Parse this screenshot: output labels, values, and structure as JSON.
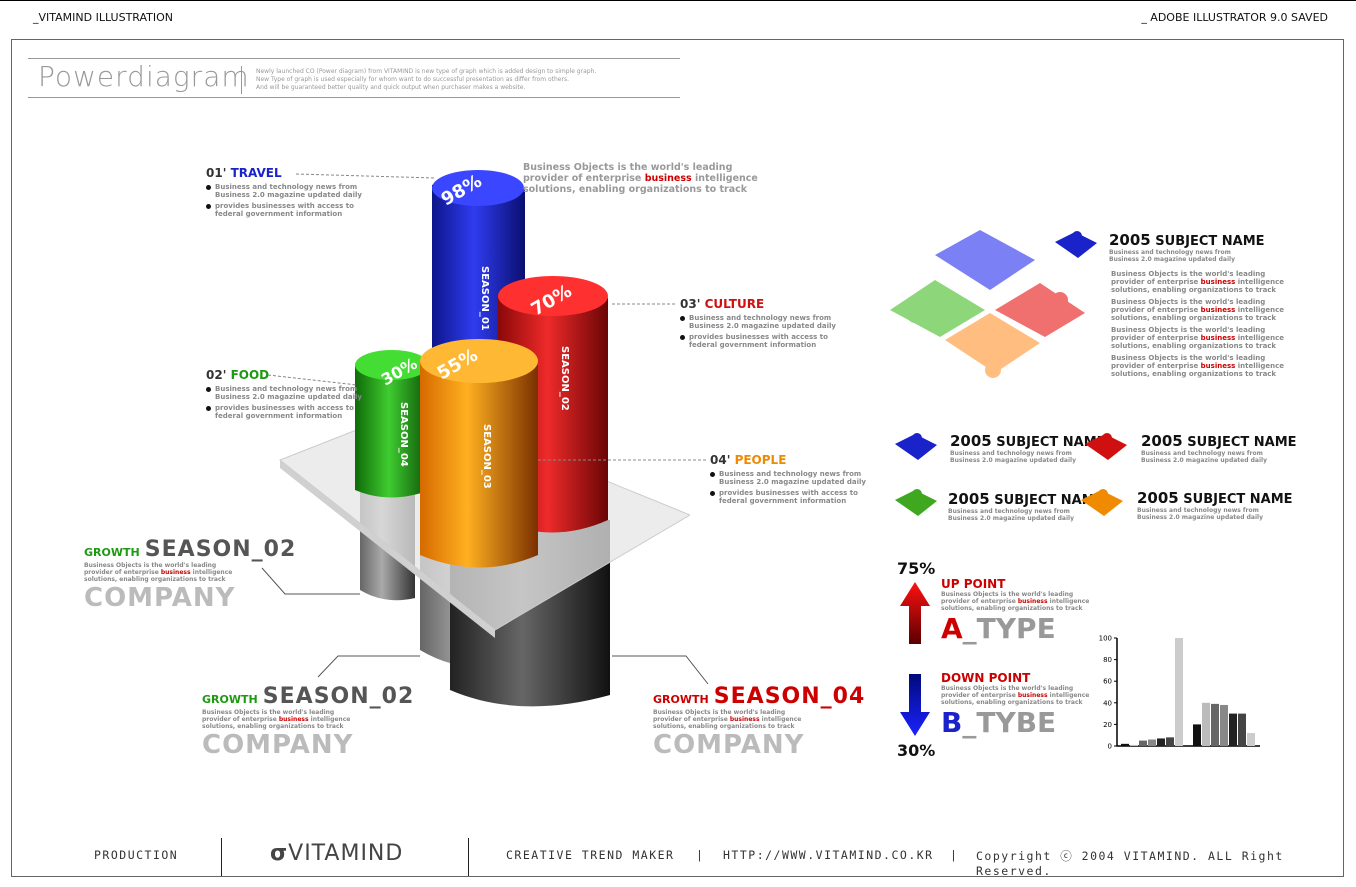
{
  "top": {
    "left": "_VITAMIND ILLUSTRATION",
    "right": "_ ADOBE ILLUSTRATOR 9.0 SAVED"
  },
  "header": {
    "title": "Powerdiagram",
    "desc1": "Newly launched CO (Power diagram) from VITAMIND is new type of graph which is added design to simple graph.",
    "desc2": "New Type of graph is used especially for whom want to do successful presentation as differ from others.",
    "desc3": "And will be guaranteed better quality and quick output when purchaser makes a website."
  },
  "columns": [
    {
      "season": "SEASON_01",
      "pct": "98%",
      "color": "#1a22c9"
    },
    {
      "season": "SEASON_02",
      "pct": "70%",
      "color": "#d01010"
    },
    {
      "season": "SEASON_04",
      "pct": "30%",
      "color": "#1c9a10"
    },
    {
      "season": "SEASON_03",
      "pct": "55%",
      "color": "#f08a00"
    }
  ],
  "callouts": {
    "travel": {
      "num": "01'",
      "name": "TRAVEL",
      "l1": "Business and technology news from",
      "l2": "Business 2.0 magazine updated daily",
      "l3": "provides businesses with access to",
      "l4": "federal government information"
    },
    "food": {
      "num": "02'",
      "name": "FOOD",
      "l1": "Business and technology news from",
      "l2": "Business 2.0 magazine updated daily",
      "l3": "provides businesses with access to",
      "l4": "federal government information"
    },
    "culture": {
      "num": "03'",
      "name": "CULTURE",
      "l1": "Business and technology news from",
      "l2": "Business 2.0 magazine updated daily",
      "l3": "provides businesses with access to",
      "l4": "federal government information"
    },
    "people": {
      "num": "04'",
      "name": "PEOPLE",
      "l1": "Business and technology news from",
      "l2": "Business 2.0 magazine updated daily",
      "l3": "provides businesses with access to",
      "l4": "federal government information"
    }
  },
  "bizTop": {
    "a": "Business Objects is the world's leading",
    "b": "provider of enterprise ",
    "c": "business",
    "d": " intelligence",
    "e": "solutions, enabling organizations to track"
  },
  "bottomLabels": {
    "growth": "GROWTH",
    "s02": "SEASON_02",
    "s04": "SEASON_04",
    "company": "COMPANY",
    "t1": "Business Objects is the world's leading",
    "t2a": "provider of enterprise ",
    "t2b": "business",
    "t2c": " intelligence",
    "t3": "solutions, enabling organizations to track"
  },
  "puzzle": {
    "year": "2005",
    "subject": "SUBJECT NAME",
    "s1": "Business and technology news from",
    "s2": "Business 2.0 magazine updated daily",
    "p1": "Business Objects is the world's leading",
    "p2a": "provider of enterprise ",
    "p2b": "business",
    "p2c": " intelligence",
    "p3": "solutions, enabling organizations to track"
  },
  "arrows": {
    "up_pct": "75%",
    "up_label": "UP POINT",
    "a": "A",
    "a_type": "_TYPE",
    "down_pct": "30%",
    "down_label": "DOWN POINT",
    "b": "B",
    "b_type": "_TYBE"
  },
  "chart_data": {
    "type": "bar",
    "ylim": [
      0,
      100
    ],
    "yticks": [
      "0",
      "20",
      "40",
      "60",
      "80",
      "100"
    ],
    "groups": [
      {
        "values": [
          2,
          1,
          5,
          6,
          7,
          8,
          100
        ]
      },
      {
        "values": [
          20,
          40,
          39,
          38,
          30,
          30,
          12
        ]
      }
    ],
    "colors": [
      "#111111",
      "#bbbbbb",
      "#666666",
      "#888888",
      "#222222",
      "#444444",
      "#cccccc"
    ]
  },
  "footer": {
    "production": "PRODUCTION",
    "brand": "VITAMIND",
    "tagline": "CREATIVE TREND MAKER",
    "sep": "|",
    "url": "HTTP://WWW.VITAMIND.CO.KR",
    "copyright": "Copyright ⓒ 2004 VITAMIND. ALL Right Reserved."
  }
}
